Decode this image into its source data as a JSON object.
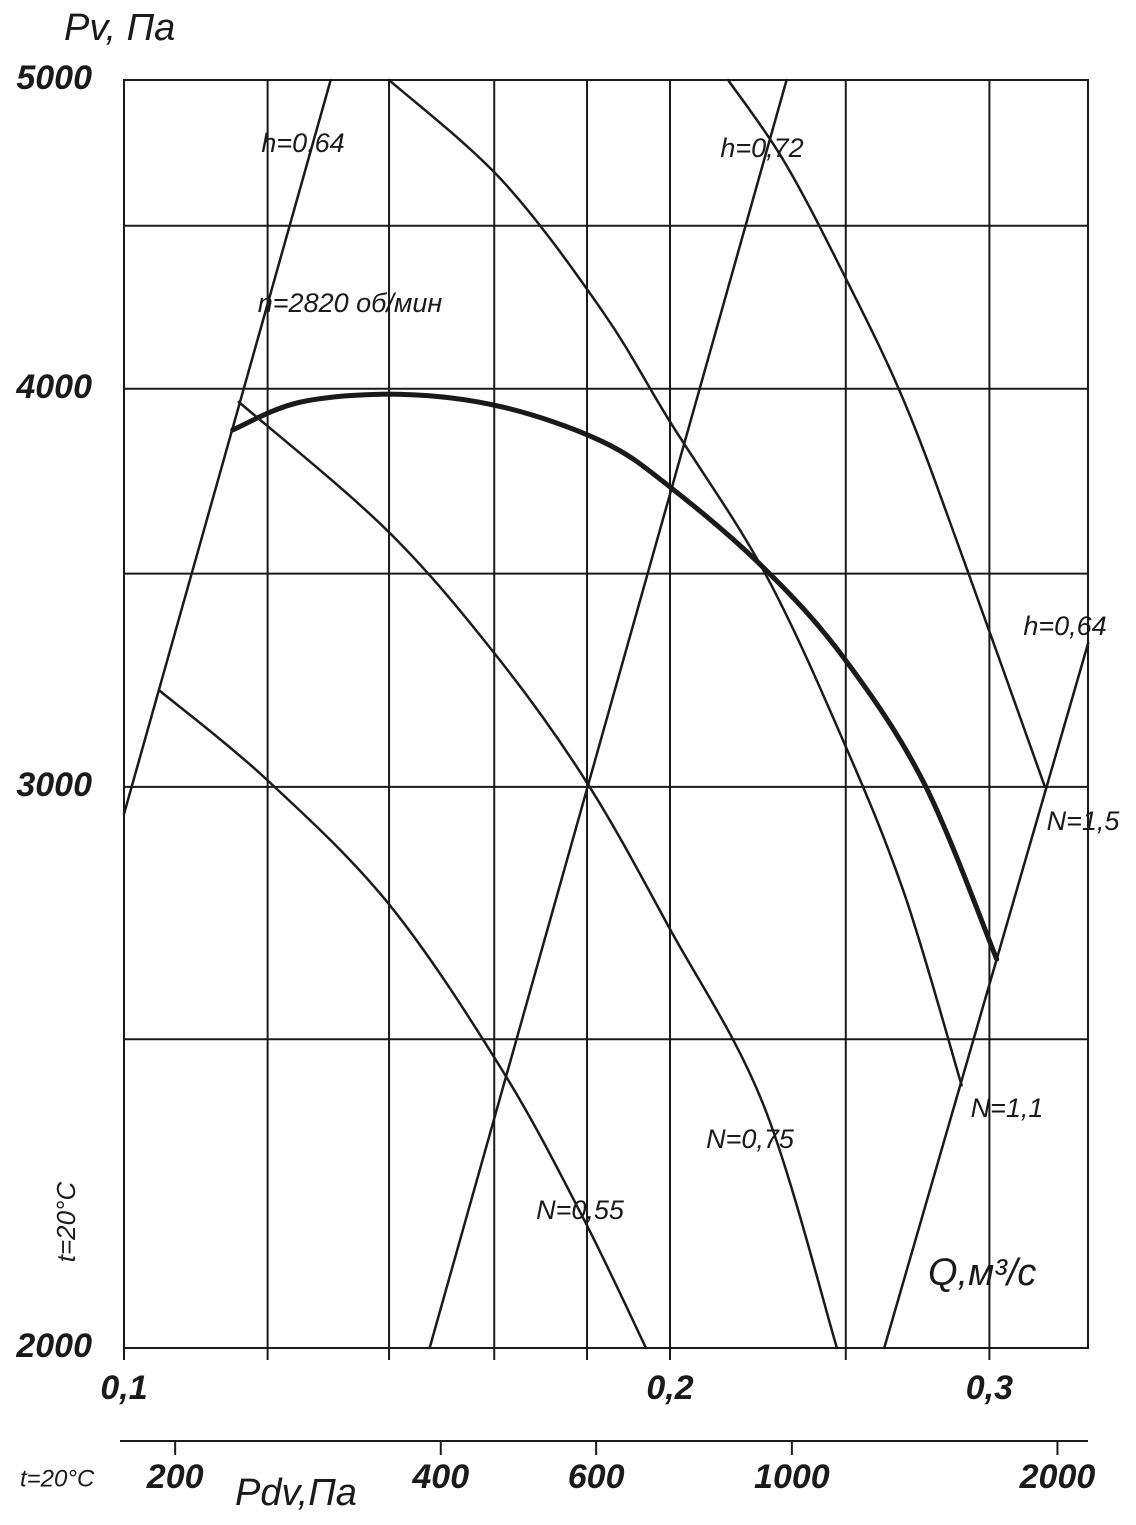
{
  "chart_data": {
    "type": "line",
    "ylabel": "Pv, Па",
    "xlabel": "Q,м³/с",
    "x2label": "Pdv,Па",
    "side_note": "t=20°C",
    "bottom_note": "t=20°C",
    "xlog": true,
    "ylog": true,
    "x2log": true,
    "grid": true,
    "xlim": [
      0.1,
      0.34
    ],
    "ylim": [
      2000,
      5000
    ],
    "x2lim": [
      175,
      2166
    ],
    "xticks": [
      {
        "value": 0.1,
        "label": "0,1"
      },
      {
        "value": 0.2,
        "label": "0,2"
      },
      {
        "value": 0.3,
        "label": "0,3"
      }
    ],
    "xminor": [
      0.12,
      0.14,
      0.16,
      0.18,
      0.25
    ],
    "yticks": [
      2000,
      3000,
      4000,
      5000
    ],
    "yminor": [
      2500,
      3500,
      4500
    ],
    "x2ticks": [
      200,
      400,
      600,
      1000,
      2000
    ],
    "series": [
      {
        "name": "n=2820 об/мин",
        "color": "#1a1a1a",
        "width": 5,
        "x": [
          0.1148,
          0.1252,
          0.1422,
          0.1616,
          0.1836,
          0.2,
          0.2252,
          0.2494,
          0.2762,
          0.3028
        ],
        "values": [
          3883,
          3962,
          3984,
          3948,
          3850,
          3726,
          3515,
          3293,
          3007,
          2649
        ]
      },
      {
        "name": "h=0,64",
        "color": "#1a1a1a",
        "width": 2.5,
        "x": [
          0.1,
          0.13
        ],
        "values": [
          2942,
          5000
        ]
      },
      {
        "name": "h=0,72",
        "color": "#1a1a1a",
        "width": 2.5,
        "x": [
          0.1474,
          0.2319
        ],
        "values": [
          2000,
          5000
        ]
      },
      {
        "name": "h=0,64",
        "color": "#1a1a1a",
        "width": 2.5,
        "x": [
          0.2625,
          0.3401
        ],
        "values": [
          2000,
          3329
        ]
      },
      {
        "name": "N=0,55",
        "color": "#1a1a1a",
        "width": 2.5,
        "x": [
          0.1047,
          0.1197,
          0.14,
          0.1616,
          0.1789,
          0.194
        ],
        "values": [
          3215,
          3018,
          2756,
          2445,
          2200,
          2000
        ]
      },
      {
        "name": "N=0,75",
        "color": "#1a1a1a",
        "width": 2.5,
        "x": [
          0.1157,
          0.14,
          0.1616,
          0.1806,
          0.2,
          0.2252,
          0.2472
        ],
        "values": [
          3962,
          3606,
          3281,
          3000,
          2707,
          2384,
          2000
        ]
      },
      {
        "name": "N=1,1",
        "color": "#1a1a1a",
        "width": 2.5,
        "x": [
          0.14,
          0.1616,
          0.1836,
          0.2,
          0.2252,
          0.2488,
          0.2693,
          0.2896
        ],
        "values": [
          5000,
          4650,
          4230,
          3906,
          3508,
          3108,
          2777,
          2418
        ]
      },
      {
        "name": "N=1,5",
        "color": "#1a1a1a",
        "width": 2.5,
        "x": [
          0.2153,
          0.231,
          0.2488,
          0.2693,
          0.2907,
          0.3219
        ],
        "values": [
          5000,
          4718,
          4356,
          3962,
          3528,
          3000
        ]
      }
    ]
  }
}
